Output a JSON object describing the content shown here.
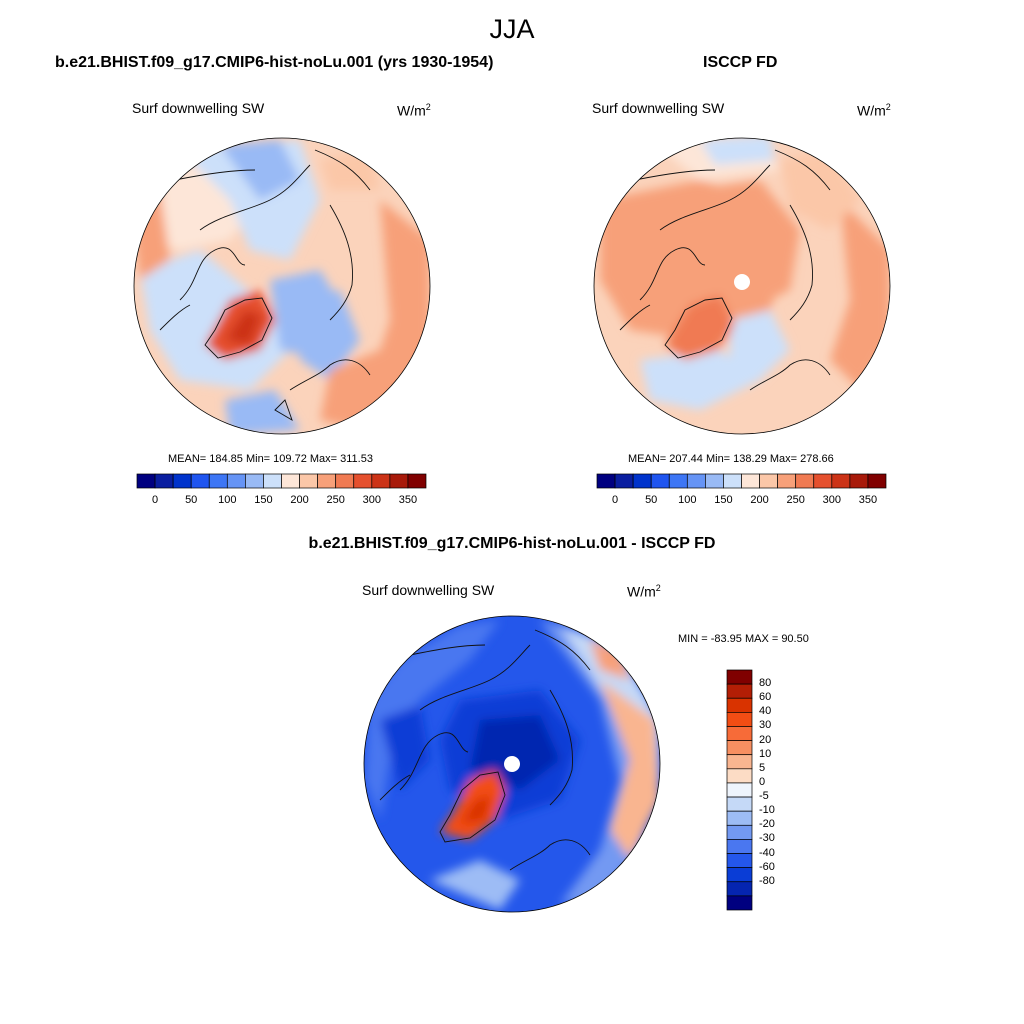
{
  "header": {
    "season": "JJA"
  },
  "panels": {
    "model": {
      "title": "b.e21.BHIST.f09_g17.CMIP6-hist-noLu.001 (yrs 1930-1954)",
      "variable": "Surf downwelling SW",
      "units_base": "W/m",
      "units_exp": "2",
      "stats": "MEAN= 184.85  Min= 109.72  Max= 311.53"
    },
    "obs": {
      "title": "ISCCP FD",
      "variable": "Surf downwelling SW",
      "units_base": "W/m",
      "units_exp": "2",
      "stats": "MEAN= 207.44  Min= 138.29  Max= 278.66"
    },
    "diff": {
      "title": "b.e21.BHIST.f09_g17.CMIP6-hist-noLu.001 - ISCCP FD",
      "variable": "Surf downwelling SW",
      "units_base": "W/m",
      "units_exp": "2",
      "stats": "MIN = -83.95 MAX =  90.50"
    }
  },
  "colorbars": {
    "abs_colors": [
      "#000080",
      "#0a1ea0",
      "#0033cc",
      "#1f55f0",
      "#3d76f5",
      "#6694f5",
      "#99baf5",
      "#cce0fa",
      "#fde6d8",
      "#fbc7a8",
      "#f7a079",
      "#f07a52",
      "#e5502e",
      "#cc3317",
      "#a81a0a",
      "#800000"
    ],
    "abs_labels": [
      "0",
      "50",
      "100",
      "150",
      "200",
      "250",
      "300",
      "350"
    ],
    "diff_colors": [
      "#800000",
      "#b31e05",
      "#d93300",
      "#f24d14",
      "#f76b38",
      "#f78f61",
      "#f9b590",
      "#fcdcc5",
      "#eef4fc",
      "#c5d9f7",
      "#9dbcf5",
      "#7399f2",
      "#4a77f0",
      "#2457eb",
      "#0a3dd6",
      "#0525b0",
      "#000080"
    ],
    "diff_labels": [
      "80",
      "60",
      "40",
      "30",
      "20",
      "10",
      "5",
      "0",
      "-5",
      "-10",
      "-20",
      "-30",
      "-40",
      "-60",
      "-80"
    ]
  },
  "chart_data": [
    {
      "type": "heatmap",
      "projection": "north polar stereographic",
      "title": "b.e21.BHIST.f09_g17.CMIP6-hist-noLu.001 (yrs 1930-1954)",
      "variable": "Surf downwelling SW",
      "units": "W/m2",
      "levels": [
        0,
        25,
        50,
        75,
        100,
        125,
        150,
        175,
        200,
        225,
        250,
        275,
        300,
        325,
        350
      ],
      "mean": 184.85,
      "min": 109.72,
      "max": 311.53
    },
    {
      "type": "heatmap",
      "projection": "north polar stereographic",
      "title": "ISCCP FD",
      "variable": "Surf downwelling SW",
      "units": "W/m2",
      "levels": [
        0,
        25,
        50,
        75,
        100,
        125,
        150,
        175,
        200,
        225,
        250,
        275,
        300,
        325,
        350
      ],
      "mean": 207.44,
      "min": 138.29,
      "max": 278.66
    },
    {
      "type": "heatmap",
      "projection": "north polar stereographic",
      "title": "b.e21.BHIST.f09_g17.CMIP6-hist-noLu.001 - ISCCP FD",
      "variable": "Surf downwelling SW",
      "units": "W/m2",
      "levels": [
        -80,
        -60,
        -40,
        -30,
        -20,
        -10,
        -5,
        0,
        5,
        10,
        20,
        30,
        40,
        60,
        80
      ],
      "min": -83.95,
      "max": 90.5
    }
  ]
}
